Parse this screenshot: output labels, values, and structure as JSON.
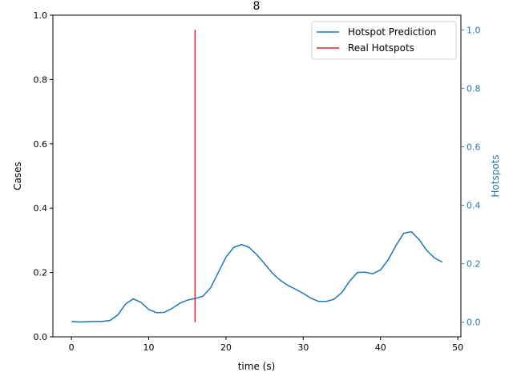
{
  "chart_data": {
    "type": "line",
    "title": "8",
    "xlabel": "time (s)",
    "ylabel_left": "Cases",
    "ylabel_right": "Hotspots",
    "xlim": [
      -2.4,
      50.4
    ],
    "ylim_left": [
      0,
      1.0
    ],
    "ylim_right": [
      -0.05,
      1.05
    ],
    "x_ticks": [
      0,
      10,
      20,
      30,
      40,
      50
    ],
    "y_ticks_left": [
      0.0,
      0.2,
      0.4,
      0.6,
      0.8,
      1.0
    ],
    "y_ticks_right": [
      0.0,
      0.2,
      0.4,
      0.6,
      0.8,
      1.0
    ],
    "legend_position": "top-right",
    "grid": false,
    "series": [
      {
        "name": "Hotspot Prediction",
        "axis": "left",
        "color": "#1f77b4",
        "x": [
          0,
          1,
          2,
          3,
          4,
          5,
          6,
          7,
          8,
          9,
          10,
          11,
          12,
          13,
          14,
          15,
          16,
          17,
          18,
          19,
          20,
          21,
          22,
          23,
          24,
          25,
          26,
          27,
          28,
          29,
          30,
          31,
          32,
          33,
          34,
          35,
          36,
          37,
          38,
          39,
          40,
          41,
          42,
          43,
          44,
          45,
          46,
          47,
          48
        ],
        "values": [
          0.048,
          0.046,
          0.047,
          0.048,
          0.048,
          0.051,
          0.068,
          0.102,
          0.118,
          0.107,
          0.085,
          0.075,
          0.076,
          0.088,
          0.104,
          0.114,
          0.119,
          0.126,
          0.152,
          0.2,
          0.248,
          0.278,
          0.287,
          0.278,
          0.255,
          0.227,
          0.198,
          0.176,
          0.16,
          0.148,
          0.135,
          0.12,
          0.11,
          0.11,
          0.117,
          0.138,
          0.173,
          0.2,
          0.201,
          0.196,
          0.208,
          0.24,
          0.284,
          0.322,
          0.327,
          0.302,
          0.268,
          0.245,
          0.232
        ]
      },
      {
        "name": "Real Hotspots",
        "axis": "right",
        "color": "#d62728",
        "x": [
          16,
          16
        ],
        "values": [
          0.0,
          1.0
        ]
      }
    ]
  }
}
